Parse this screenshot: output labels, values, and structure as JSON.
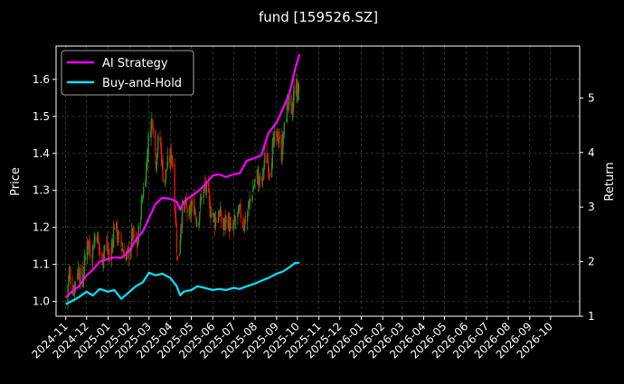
{
  "chart_data": {
    "type": "line",
    "title": "fund [159526.SZ]",
    "xlabel": "",
    "ylabel_left": "Price",
    "ylabel_right": "Return",
    "x_tick_labels": [
      "2024-11",
      "2024-12",
      "2025-01",
      "2025-02",
      "2025-03",
      "2025-04",
      "2025-05",
      "2025-06",
      "2025-07",
      "2025-08",
      "2025-09",
      "2025-10",
      "2025-11",
      "2025-12",
      "2026-01",
      "2026-02",
      "2026-03",
      "2026-04",
      "2026-05",
      "2026-06",
      "2026-07",
      "2026-08",
      "2026-09",
      "2026-10"
    ],
    "y_left_ticks": [
      "1.0",
      "1.1",
      "1.2",
      "1.3",
      "1.4",
      "1.5",
      "1.6"
    ],
    "y_right_ticks": [
      "1",
      "2",
      "3",
      "4",
      "5"
    ],
    "ylim_left": [
      0.96,
      1.69
    ],
    "ylim_right": [
      1.0,
      5.95
    ],
    "grid": true,
    "legend_position": "top-left",
    "background": "#000000",
    "candles": {
      "up_color": "#2e8b22",
      "down_color": "#e8140c",
      "close_path": [
        [
          "2024-11-01",
          1.0
        ],
        [
          "2024-11-06",
          1.08
        ],
        [
          "2024-11-12",
          1.03
        ],
        [
          "2024-11-18",
          1.09
        ],
        [
          "2024-11-25",
          1.05
        ],
        [
          "2024-12-02",
          1.17
        ],
        [
          "2024-12-08",
          1.12
        ],
        [
          "2024-12-15",
          1.2
        ],
        [
          "2024-12-22",
          1.1
        ],
        [
          "2024-12-28",
          1.16
        ],
        [
          "2025-01-04",
          1.11
        ],
        [
          "2025-01-10",
          1.21
        ],
        [
          "2025-01-16",
          1.17
        ],
        [
          "2025-01-22",
          1.14
        ],
        [
          "2025-01-29",
          1.12
        ],
        [
          "2025-02-05",
          1.18
        ],
        [
          "2025-02-12",
          1.15
        ],
        [
          "2025-02-18",
          1.26
        ],
        [
          "2025-02-24",
          1.35
        ],
        [
          "2025-03-01",
          1.45
        ],
        [
          "2025-03-06",
          1.5
        ],
        [
          "2025-03-11",
          1.38
        ],
        [
          "2025-03-16",
          1.46
        ],
        [
          "2025-03-22",
          1.32
        ],
        [
          "2025-03-28",
          1.37
        ],
        [
          "2025-04-03",
          1.4
        ],
        [
          "2025-04-08",
          1.24
        ],
        [
          "2025-04-12",
          1.06
        ],
        [
          "2025-04-16",
          1.22
        ],
        [
          "2025-04-22",
          1.26
        ],
        [
          "2025-04-28",
          1.23
        ],
        [
          "2025-05-04",
          1.27
        ],
        [
          "2025-05-10",
          1.21
        ],
        [
          "2025-05-16",
          1.29
        ],
        [
          "2025-05-22",
          1.31
        ],
        [
          "2025-05-28",
          1.25
        ],
        [
          "2025-06-04",
          1.22
        ],
        [
          "2025-06-10",
          1.24
        ],
        [
          "2025-06-16",
          1.2
        ],
        [
          "2025-06-22",
          1.23
        ],
        [
          "2025-06-28",
          1.18
        ],
        [
          "2025-07-04",
          1.22
        ],
        [
          "2025-07-10",
          1.24
        ],
        [
          "2025-07-16",
          1.21
        ],
        [
          "2025-07-22",
          1.25
        ],
        [
          "2025-07-28",
          1.3
        ],
        [
          "2025-08-04",
          1.34
        ],
        [
          "2025-08-10",
          1.31
        ],
        [
          "2025-08-16",
          1.4
        ],
        [
          "2025-08-22",
          1.36
        ],
        [
          "2025-08-28",
          1.43
        ],
        [
          "2025-09-03",
          1.45
        ],
        [
          "2025-09-08",
          1.4
        ],
        [
          "2025-09-13",
          1.48
        ],
        [
          "2025-09-18",
          1.55
        ],
        [
          "2025-09-23",
          1.49
        ],
        [
          "2025-09-27",
          1.6
        ],
        [
          "2025-10-01",
          1.56
        ],
        [
          "2025-10-04",
          1.6
        ]
      ]
    },
    "series": [
      {
        "name": "AI Strategy",
        "color": "#ff00ff",
        "axis": "right",
        "points": [
          [
            "2024-11-01",
            1.35
          ],
          [
            "2024-11-10",
            1.45
          ],
          [
            "2024-11-20",
            1.55
          ],
          [
            "2024-12-01",
            1.75
          ],
          [
            "2024-12-10",
            1.85
          ],
          [
            "2024-12-20",
            2.0
          ],
          [
            "2025-01-01",
            2.05
          ],
          [
            "2025-01-10",
            2.08
          ],
          [
            "2025-01-20",
            2.07
          ],
          [
            "2025-02-01",
            2.2
          ],
          [
            "2025-02-10",
            2.4
          ],
          [
            "2025-02-20",
            2.55
          ],
          [
            "2025-03-01",
            2.8
          ],
          [
            "2025-03-10",
            3.05
          ],
          [
            "2025-03-20",
            3.17
          ],
          [
            "2025-04-01",
            3.15
          ],
          [
            "2025-04-10",
            3.1
          ],
          [
            "2025-04-15",
            2.95
          ],
          [
            "2025-04-20",
            3.1
          ],
          [
            "2025-05-01",
            3.2
          ],
          [
            "2025-05-10",
            3.28
          ],
          [
            "2025-05-20",
            3.4
          ],
          [
            "2025-06-01",
            3.58
          ],
          [
            "2025-06-10",
            3.6
          ],
          [
            "2025-06-20",
            3.55
          ],
          [
            "2025-07-01",
            3.6
          ],
          [
            "2025-07-10",
            3.62
          ],
          [
            "2025-07-20",
            3.85
          ],
          [
            "2025-08-01",
            3.9
          ],
          [
            "2025-08-10",
            3.95
          ],
          [
            "2025-08-20",
            4.35
          ],
          [
            "2025-09-01",
            4.55
          ],
          [
            "2025-09-10",
            4.8
          ],
          [
            "2025-09-20",
            5.1
          ],
          [
            "2025-09-28",
            5.55
          ],
          [
            "2025-10-04",
            5.8
          ]
        ]
      },
      {
        "name": "Buy-and-Hold",
        "color": "#00e5ff",
        "axis": "right",
        "points": [
          [
            "2024-11-01",
            1.22
          ],
          [
            "2024-11-10",
            1.28
          ],
          [
            "2024-11-20",
            1.35
          ],
          [
            "2024-12-01",
            1.45
          ],
          [
            "2024-12-10",
            1.38
          ],
          [
            "2024-12-20",
            1.5
          ],
          [
            "2025-01-01",
            1.45
          ],
          [
            "2025-01-10",
            1.48
          ],
          [
            "2025-01-20",
            1.32
          ],
          [
            "2025-02-01",
            1.45
          ],
          [
            "2025-02-10",
            1.55
          ],
          [
            "2025-02-20",
            1.62
          ],
          [
            "2025-03-01",
            1.8
          ],
          [
            "2025-03-10",
            1.75
          ],
          [
            "2025-03-20",
            1.78
          ],
          [
            "2025-04-01",
            1.7
          ],
          [
            "2025-04-10",
            1.55
          ],
          [
            "2025-04-15",
            1.38
          ],
          [
            "2025-04-20",
            1.45
          ],
          [
            "2025-05-01",
            1.48
          ],
          [
            "2025-05-10",
            1.55
          ],
          [
            "2025-05-20",
            1.52
          ],
          [
            "2025-06-01",
            1.48
          ],
          [
            "2025-06-10",
            1.5
          ],
          [
            "2025-06-20",
            1.48
          ],
          [
            "2025-07-01",
            1.52
          ],
          [
            "2025-07-10",
            1.5
          ],
          [
            "2025-07-20",
            1.55
          ],
          [
            "2025-08-01",
            1.6
          ],
          [
            "2025-08-10",
            1.65
          ],
          [
            "2025-08-20",
            1.7
          ],
          [
            "2025-09-01",
            1.78
          ],
          [
            "2025-09-10",
            1.82
          ],
          [
            "2025-09-20",
            1.9
          ],
          [
            "2025-09-28",
            1.98
          ],
          [
            "2025-10-04",
            1.98
          ]
        ]
      }
    ]
  }
}
